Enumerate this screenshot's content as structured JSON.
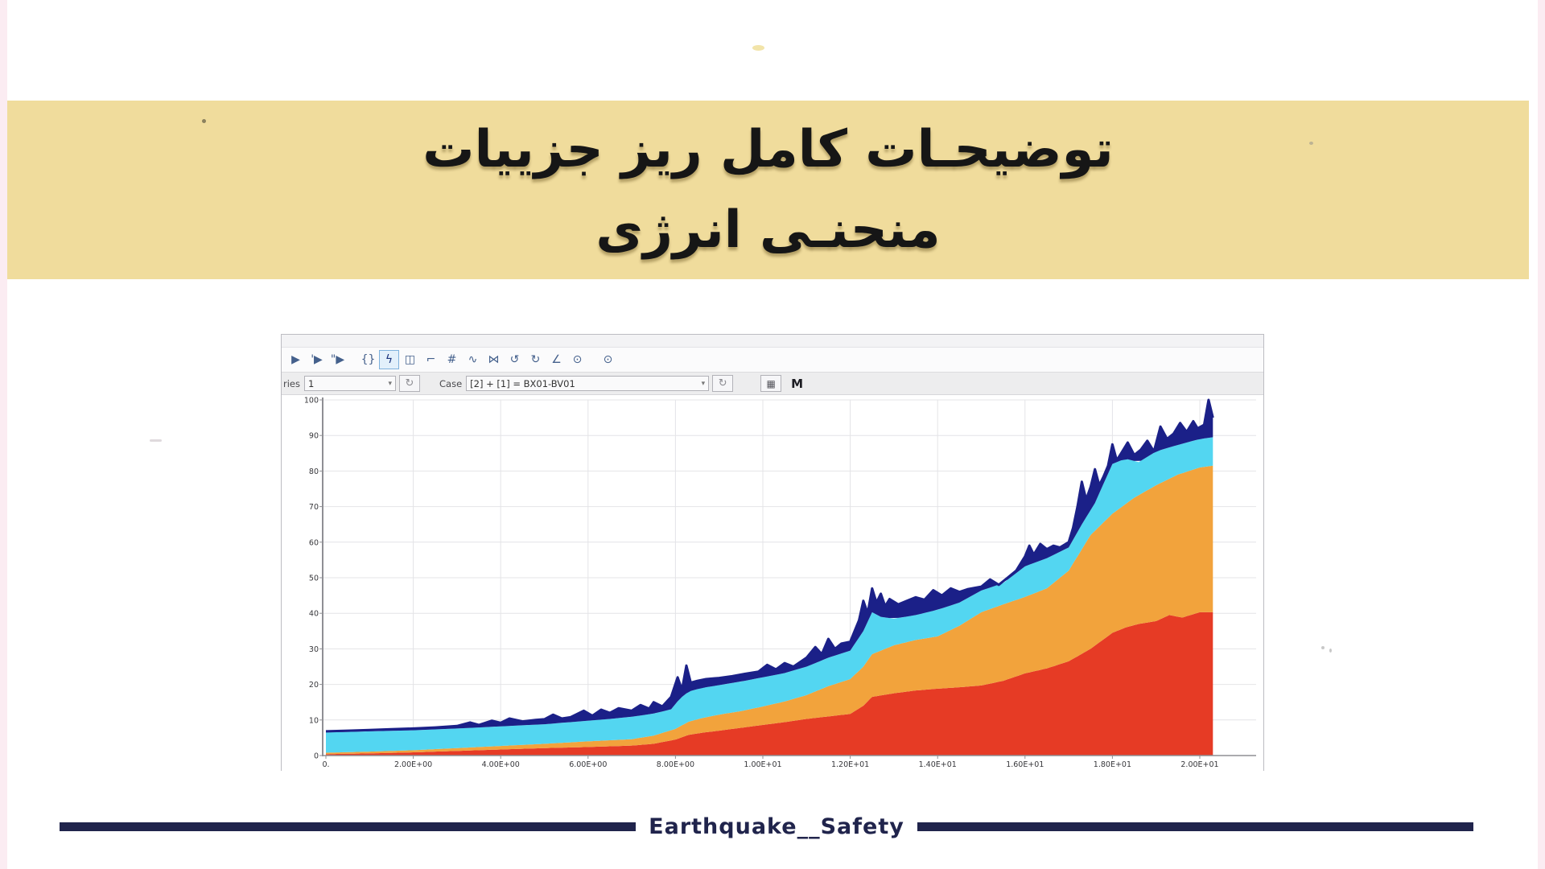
{
  "title_banner": {
    "background": "#f0dc9c",
    "line1": "توضیحـات کامل ریز جزییات",
    "line2": "منحنـی انرژی"
  },
  "app_window": {
    "toolbar_icons": [
      {
        "name": "run",
        "glyph": "▶"
      },
      {
        "name": "run-step",
        "glyph": "'▶"
      },
      {
        "name": "run-step-2",
        "glyph": "\"▶"
      },
      {
        "type": "sep"
      },
      {
        "name": "braces",
        "glyph": "{}"
      },
      {
        "name": "lightning",
        "glyph": "ϟ",
        "selected": true
      },
      {
        "name": "building",
        "glyph": "◫"
      },
      {
        "name": "hook",
        "glyph": "⌐"
      },
      {
        "name": "hash",
        "glyph": "#"
      },
      {
        "name": "wave-pointer",
        "glyph": "∿"
      },
      {
        "name": "bowtie",
        "glyph": "⋈"
      },
      {
        "name": "rotate-ccw",
        "glyph": "↺"
      },
      {
        "name": "rotate-cw",
        "glyph": "↻"
      },
      {
        "name": "angle-chart",
        "glyph": "∠"
      },
      {
        "name": "clock",
        "glyph": "⊙"
      },
      {
        "type": "sep"
      },
      {
        "name": "timer",
        "glyph": "⊙"
      }
    ],
    "controls": {
      "series_label": "ries",
      "series_value": "1",
      "case_label": "Case",
      "case_value": "[2] + [1] = BX01-BV01",
      "dropdown_arrow": "▾",
      "refresh_glyph": "↻",
      "image_button_glyph": "▦",
      "m_button_label": "M"
    }
  },
  "chart_data": {
    "type": "area",
    "stacked": true,
    "grid": true,
    "xlim": [
      0,
      21.3
    ],
    "ylim": [
      0,
      100
    ],
    "x_ticks": [
      "0.",
      "2.00E+00",
      "4.00E+00",
      "6.00E+00",
      "8.00E+00",
      "1.00E+01",
      "1.20E+01",
      "1.40E+01",
      "1.60E+01",
      "1.80E+01",
      "2.00E+01"
    ],
    "x_tick_values": [
      0,
      2,
      4,
      6,
      8,
      10,
      12,
      14,
      16,
      18,
      20
    ],
    "y_ticks": [
      0,
      10,
      20,
      30,
      40,
      50,
      60,
      70,
      80,
      90,
      100
    ],
    "series": [
      {
        "name": "red-area",
        "color": "#e63b25",
        "points": [
          [
            0,
            0.4
          ],
          [
            1,
            0.6
          ],
          [
            2,
            0.9
          ],
          [
            3,
            1.3
          ],
          [
            4,
            1.7
          ],
          [
            5,
            2.1
          ],
          [
            6,
            2.4
          ],
          [
            7,
            2.8
          ],
          [
            7.5,
            3.3
          ],
          [
            8,
            4.5
          ],
          [
            8.3,
            5.8
          ],
          [
            8.6,
            6.4
          ],
          [
            9,
            7
          ],
          [
            9.5,
            7.8
          ],
          [
            10,
            8.6
          ],
          [
            10.5,
            9.4
          ],
          [
            11,
            10.3
          ],
          [
            11.5,
            11
          ],
          [
            12,
            11.7
          ],
          [
            12.3,
            14
          ],
          [
            12.5,
            16.5
          ],
          [
            13,
            17.5
          ],
          [
            13.5,
            18.3
          ],
          [
            14,
            18.8
          ],
          [
            14.5,
            19.2
          ],
          [
            15,
            19.7
          ],
          [
            15.5,
            21
          ],
          [
            16,
            23.1
          ],
          [
            16.5,
            24.5
          ],
          [
            17,
            26.5
          ],
          [
            17.5,
            30
          ],
          [
            18,
            34.5
          ],
          [
            18.3,
            36
          ],
          [
            18.6,
            37
          ],
          [
            19,
            37.8
          ],
          [
            19.3,
            39.5
          ],
          [
            19.6,
            38.8
          ],
          [
            20,
            40.3
          ],
          [
            20.3,
            40.3
          ]
        ]
      },
      {
        "name": "orange-area",
        "color": "#f2a33c",
        "points": [
          [
            0,
            0.8
          ],
          [
            1,
            1.1
          ],
          [
            2,
            1.5
          ],
          [
            3,
            2.1
          ],
          [
            4,
            2.7
          ],
          [
            5,
            3.3
          ],
          [
            6,
            4
          ],
          [
            7,
            4.6
          ],
          [
            7.5,
            5.6
          ],
          [
            8,
            7.5
          ],
          [
            8.3,
            9.5
          ],
          [
            8.6,
            10.5
          ],
          [
            9,
            11.5
          ],
          [
            9.5,
            12.5
          ],
          [
            10,
            13.8
          ],
          [
            10.5,
            15.2
          ],
          [
            11,
            17
          ],
          [
            11.5,
            19.5
          ],
          [
            12,
            21.5
          ],
          [
            12.3,
            25
          ],
          [
            12.5,
            28.5
          ],
          [
            13,
            31
          ],
          [
            13.5,
            32.5
          ],
          [
            14,
            33.5
          ],
          [
            14.5,
            36.5
          ],
          [
            15,
            40.3
          ],
          [
            15.5,
            42.5
          ],
          [
            16,
            44.6
          ],
          [
            16.5,
            47
          ],
          [
            17,
            52
          ],
          [
            17.5,
            62
          ],
          [
            18,
            68
          ],
          [
            18.5,
            72.5
          ],
          [
            19,
            76
          ],
          [
            19.5,
            79
          ],
          [
            20,
            81
          ],
          [
            20.3,
            81.5
          ]
        ]
      },
      {
        "name": "cyan-area",
        "color": "#53d6f1",
        "points": [
          [
            0,
            6.5
          ],
          [
            1,
            6.8
          ],
          [
            2,
            7.1
          ],
          [
            3,
            7.6
          ],
          [
            4,
            8.2
          ],
          [
            5,
            8.8
          ],
          [
            6,
            9.8
          ],
          [
            6.5,
            10.3
          ],
          [
            7,
            10.9
          ],
          [
            7.5,
            11.8
          ],
          [
            7.9,
            13
          ],
          [
            8.1,
            16
          ],
          [
            8.3,
            18
          ],
          [
            8.6,
            19
          ],
          [
            9,
            19.8
          ],
          [
            9.5,
            20.8
          ],
          [
            10,
            22
          ],
          [
            10.5,
            23.2
          ],
          [
            11,
            25
          ],
          [
            11.5,
            27.5
          ],
          [
            12,
            29.5
          ],
          [
            12.3,
            35
          ],
          [
            12.5,
            40.3
          ],
          [
            12.7,
            39
          ],
          [
            13,
            38.5
          ],
          [
            13.5,
            39.5
          ],
          [
            14,
            41
          ],
          [
            14.5,
            43
          ],
          [
            15,
            46.4
          ],
          [
            15.5,
            48.5
          ],
          [
            16,
            53.2
          ],
          [
            16.5,
            55.5
          ],
          [
            17,
            58.5
          ],
          [
            17.3,
            65
          ],
          [
            17.6,
            71
          ],
          [
            18,
            82
          ],
          [
            18.3,
            83.5
          ],
          [
            18.6,
            82.5
          ],
          [
            19,
            85.5
          ],
          [
            19.4,
            87
          ],
          [
            19.7,
            88
          ],
          [
            20,
            89
          ],
          [
            20.3,
            89.5
          ]
        ]
      },
      {
        "name": "navy-band",
        "color": "#1b2088",
        "points": [
          [
            0,
            6.8
          ],
          [
            0.5,
            7
          ],
          [
            1,
            7.2
          ],
          [
            1.5,
            7.4
          ],
          [
            2,
            7.6
          ],
          [
            2.5,
            7.9
          ],
          [
            3,
            8.3
          ],
          [
            3.3,
            9.3
          ],
          [
            3.5,
            8.6
          ],
          [
            3.8,
            9.8
          ],
          [
            4,
            9.2
          ],
          [
            4.2,
            10.4
          ],
          [
            4.5,
            9.6
          ],
          [
            4.8,
            10
          ],
          [
            5,
            10.2
          ],
          [
            5.2,
            11.5
          ],
          [
            5.4,
            10.4
          ],
          [
            5.6,
            10.8
          ],
          [
            5.9,
            12.6
          ],
          [
            6.1,
            11.2
          ],
          [
            6.3,
            12.9
          ],
          [
            6.5,
            12
          ],
          [
            6.7,
            13.3
          ],
          [
            7,
            12.6
          ],
          [
            7.2,
            14.2
          ],
          [
            7.4,
            13.2
          ],
          [
            7.5,
            15
          ],
          [
            7.7,
            13.8
          ],
          [
            7.9,
            16.5
          ],
          [
            8.05,
            22
          ],
          [
            8.15,
            18.5
          ],
          [
            8.25,
            25.3
          ],
          [
            8.35,
            20.5
          ],
          [
            8.5,
            21
          ],
          [
            8.7,
            21.5
          ],
          [
            9,
            21.8
          ],
          [
            9.3,
            22.3
          ],
          [
            9.6,
            23
          ],
          [
            9.9,
            23.6
          ],
          [
            10.1,
            25.5
          ],
          [
            10.3,
            24.2
          ],
          [
            10.5,
            26
          ],
          [
            10.7,
            25
          ],
          [
            11,
            27.5
          ],
          [
            11.2,
            30.5
          ],
          [
            11.35,
            28.5
          ],
          [
            11.5,
            32.8
          ],
          [
            11.65,
            30
          ],
          [
            11.8,
            31.5
          ],
          [
            12,
            32
          ],
          [
            12.1,
            35
          ],
          [
            12.2,
            38
          ],
          [
            12.3,
            43.5
          ],
          [
            12.4,
            40
          ],
          [
            12.5,
            47
          ],
          [
            12.6,
            43
          ],
          [
            12.7,
            45.5
          ],
          [
            12.8,
            42
          ],
          [
            12.9,
            44
          ],
          [
            13.1,
            42.5
          ],
          [
            13.3,
            43.5
          ],
          [
            13.5,
            44.5
          ],
          [
            13.7,
            43.8
          ],
          [
            13.9,
            46.5
          ],
          [
            14.1,
            45
          ],
          [
            14.3,
            47
          ],
          [
            14.5,
            46
          ],
          [
            14.7,
            46.8
          ],
          [
            15,
            47.5
          ],
          [
            15.2,
            49.5
          ],
          [
            15.4,
            48
          ],
          [
            15.6,
            50
          ],
          [
            15.8,
            52
          ],
          [
            16,
            56
          ],
          [
            16.1,
            59
          ],
          [
            16.2,
            56.5
          ],
          [
            16.35,
            59.5
          ],
          [
            16.5,
            58
          ],
          [
            16.65,
            59
          ],
          [
            16.8,
            58.5
          ],
          [
            17,
            60
          ],
          [
            17.1,
            64
          ],
          [
            17.2,
            70
          ],
          [
            17.3,
            77
          ],
          [
            17.4,
            72
          ],
          [
            17.5,
            75.5
          ],
          [
            17.6,
            80.5
          ],
          [
            17.7,
            76
          ],
          [
            17.8,
            78.5
          ],
          [
            17.9,
            81.5
          ],
          [
            18,
            87.5
          ],
          [
            18.1,
            83
          ],
          [
            18.2,
            85
          ],
          [
            18.35,
            88
          ],
          [
            18.5,
            84.5
          ],
          [
            18.65,
            86
          ],
          [
            18.8,
            88.5
          ],
          [
            18.95,
            85.5
          ],
          [
            19.1,
            92.5
          ],
          [
            19.25,
            89
          ],
          [
            19.4,
            90.5
          ],
          [
            19.55,
            93.5
          ],
          [
            19.7,
            91
          ],
          [
            19.85,
            94
          ],
          [
            19.95,
            92
          ],
          [
            20.1,
            93
          ],
          [
            20.2,
            100
          ],
          [
            20.3,
            95
          ]
        ]
      }
    ]
  },
  "footer": {
    "label": "Earthquake__Safety",
    "bar_color": "#20244c"
  }
}
